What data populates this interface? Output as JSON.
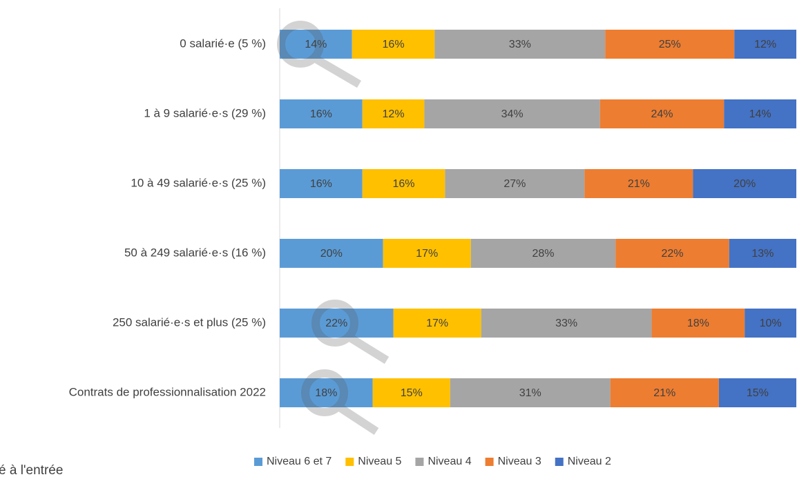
{
  "chart_data": {
    "type": "bar",
    "orientation": "horizontal",
    "stacked": true,
    "categories": [
      "0 salarié·e (5 %)",
      "1 à 9 salarié·e·s (29 %)",
      "10 à 49 salarié·e·s (25 %)",
      "50 à 249 salarié·e·s (16 %)",
      "250 salarié·e·s et plus (25 %)",
      "Contrats de professionnalisation 2022"
    ],
    "series": [
      {
        "name": "Niveau 6 et 7",
        "color": "#5b9bd5",
        "values": [
          14,
          16,
          16,
          20,
          22,
          18
        ],
        "value_labels": [
          "14%",
          "16%",
          "16%",
          "20%",
          "22%",
          "18%"
        ]
      },
      {
        "name": "Niveau 5",
        "color": "#ffc000",
        "values": [
          16,
          12,
          16,
          17,
          17,
          15
        ],
        "value_labels": [
          "16%",
          "12%",
          "16%",
          "17%",
          "17%",
          "15%"
        ]
      },
      {
        "name": "Niveau 4",
        "color": "#a5a5a5",
        "values": [
          33,
          34,
          27,
          28,
          33,
          31
        ],
        "value_labels": [
          "33%",
          "34%",
          "27%",
          "28%",
          "33%",
          "31%"
        ]
      },
      {
        "name": "Niveau 3",
        "color": "#ed7d31",
        "values": [
          25,
          24,
          21,
          22,
          18,
          21
        ],
        "value_labels": [
          "25%",
          "24%",
          "21%",
          "22%",
          "18%",
          "21%"
        ]
      },
      {
        "name": "Niveau 2",
        "color": "#4472c4",
        "values": [
          12,
          14,
          20,
          13,
          10,
          15
        ],
        "value_labels": [
          "12%",
          "14%",
          "20%",
          "13%",
          "10%",
          "15%"
        ]
      }
    ],
    "xlim": [
      0,
      100
    ],
    "legend": "bottom",
    "annotation": "é à l'entrée"
  }
}
